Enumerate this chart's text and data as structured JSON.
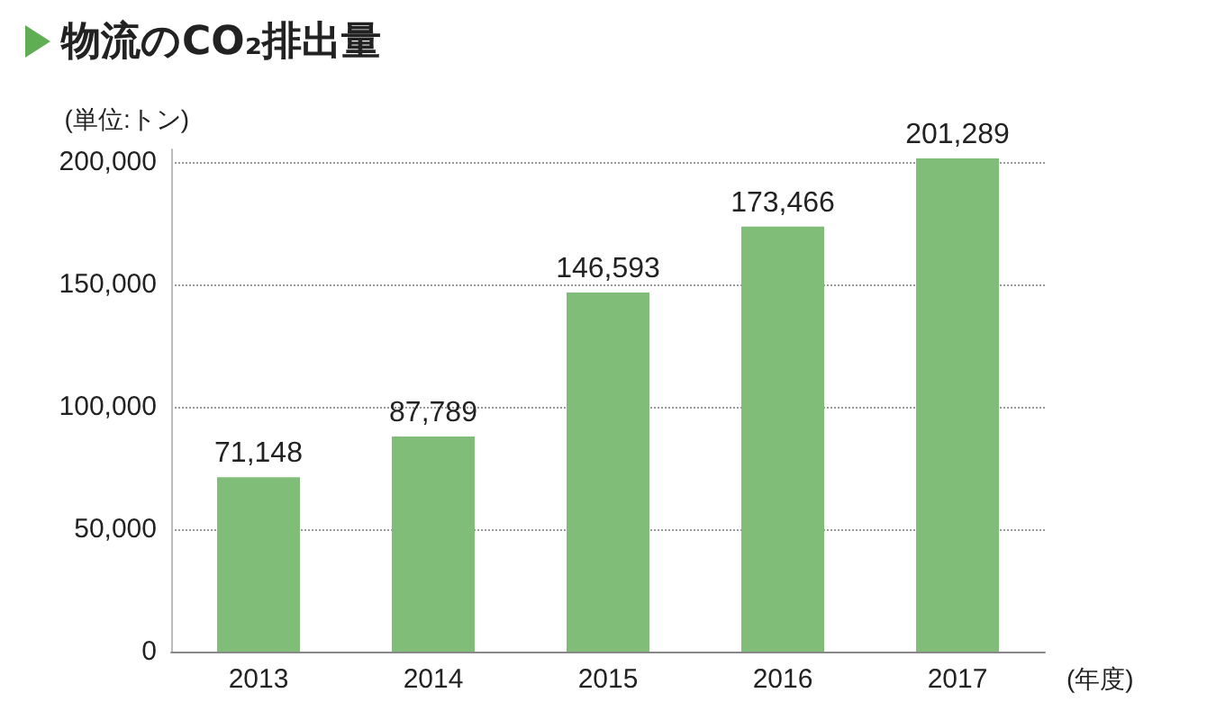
{
  "chart_data": {
    "type": "bar",
    "title": "物流のCO₂排出量",
    "ylabel": "(単位:トン)",
    "xlabel": "(年度)",
    "categories": [
      "2013",
      "2014",
      "2015",
      "2016",
      "2017"
    ],
    "values": [
      71148,
      87789,
      146593,
      173466,
      201289
    ],
    "value_labels": [
      "71,148",
      "87,789",
      "146,593",
      "173,466",
      "201,289"
    ],
    "color": "#80bd78",
    "ylim": [
      0,
      205000
    ],
    "yticks": [
      0,
      {
        "value": 50000,
        "label": "50,000"
      },
      {
        "value": 100000,
        "label": "100,000"
      },
      {
        "value": 150000,
        "label": "150,000"
      },
      {
        "value": 200000,
        "label": "200,000"
      }
    ],
    "grid": "y"
  }
}
